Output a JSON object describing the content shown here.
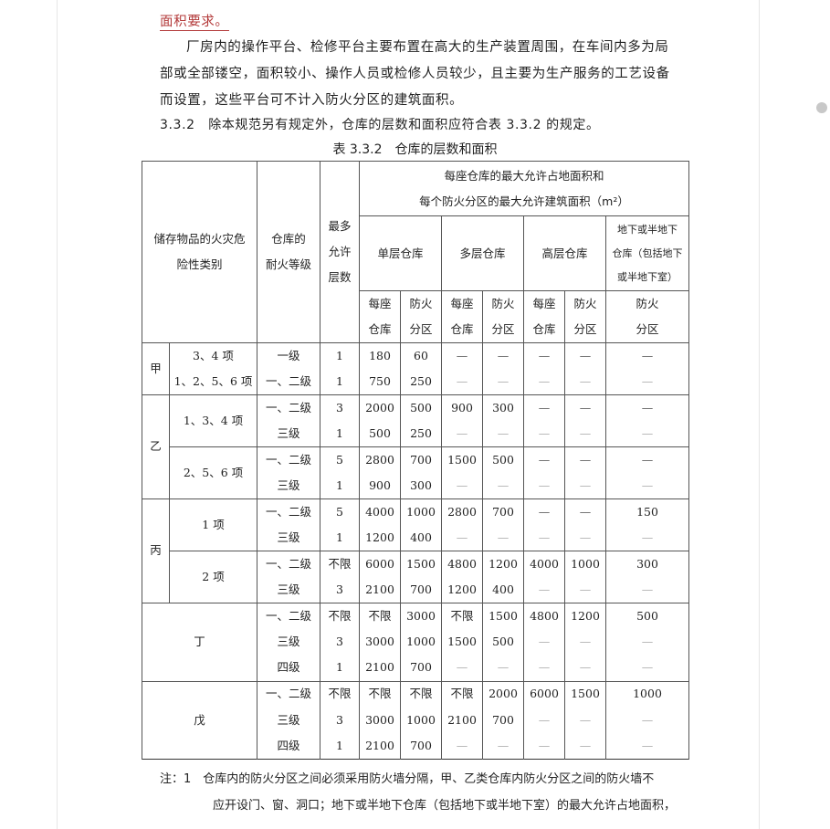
{
  "text": {
    "heading_tail": "面积要求。",
    "para_lines": [
      "厂房内的操作平台、检修平台主要布置在高大的生产装置周围，在车间内多为局",
      "部或全部镂空，面积较小、操作人员或检修人员较少，且主要为生产服务的工艺设备",
      "而设置，这些平台可不计入防火分区的建筑面积。"
    ],
    "clause": "3.3.2　除本规范另有规定外，仓库的层数和面积应符合表 3.3.2 的规定。",
    "table_caption": "表 3.3.2　仓库的层数和面积"
  },
  "table": {
    "header": {
      "col_category": [
        "储存物品的火灾危",
        "险性类别"
      ],
      "col_grade": [
        "仓库的",
        "耐火等级"
      ],
      "col_floors": [
        "最多",
        "允许",
        "层数"
      ],
      "area_group": [
        "每座仓库的最大允许占地面积和",
        "每个防火分区的最大允许建筑面积（m²）"
      ],
      "single": "单层仓库",
      "multi": "多层仓库",
      "high": "高层仓库",
      "underground": [
        "地下或半地下",
        "仓库（包括地下",
        "或半地下室）"
      ],
      "per_building": [
        "每座",
        "仓库"
      ],
      "fire_zone": [
        "防火",
        "分区"
      ]
    },
    "groups": [
      {
        "category": "甲",
        "subs": [
          {
            "item": "3、4 项",
            "rows": [
              [
                "一级",
                "1",
                "180",
                "60",
                "—",
                "—",
                "—",
                "—",
                "—"
              ]
            ]
          },
          {
            "item": "1、2、5、6 项",
            "rows": [
              [
                "一、二级",
                "1",
                "750",
                "250",
                "—",
                "—",
                "—",
                "—",
                "—"
              ]
            ]
          }
        ],
        "inline": true
      },
      {
        "category": "乙",
        "subs": [
          {
            "item": "1、3、4 项",
            "rows": [
              [
                "一、二级",
                "3",
                "2000",
                "500",
                "900",
                "300",
                "—",
                "—",
                "—"
              ],
              [
                "三级",
                "1",
                "500",
                "250",
                "—",
                "—",
                "—",
                "—",
                "—"
              ]
            ]
          },
          {
            "item": "2、5、6 项",
            "rows": [
              [
                "一、二级",
                "5",
                "2800",
                "700",
                "1500",
                "500",
                "—",
                "—",
                "—"
              ],
              [
                "三级",
                "1",
                "900",
                "300",
                "—",
                "—",
                "—",
                "—",
                "—"
              ]
            ]
          }
        ]
      },
      {
        "category": "丙",
        "subs": [
          {
            "item": "1 项",
            "rows": [
              [
                "一、二级",
                "5",
                "4000",
                "1000",
                "2800",
                "700",
                "—",
                "—",
                "150"
              ],
              [
                "三级",
                "1",
                "1200",
                "400",
                "—",
                "—",
                "—",
                "—",
                "—"
              ]
            ]
          },
          {
            "item": "2 项",
            "rows": [
              [
                "一、二级",
                "不限",
                "6000",
                "1500",
                "4800",
                "1200",
                "4000",
                "1000",
                "300"
              ],
              [
                "三级",
                "3",
                "2100",
                "700",
                "1200",
                "400",
                "—",
                "—",
                "—"
              ]
            ]
          }
        ]
      },
      {
        "category": "丁",
        "merged": true,
        "rows": [
          [
            "一、二级",
            "不限",
            "不限",
            "3000",
            "不限",
            "1500",
            "4800",
            "1200",
            "500"
          ],
          [
            "三级",
            "3",
            "3000",
            "1000",
            "1500",
            "500",
            "—",
            "—",
            "—"
          ],
          [
            "四级",
            "1",
            "2100",
            "700",
            "—",
            "—",
            "—",
            "—",
            "—"
          ]
        ]
      },
      {
        "category": "戊",
        "merged": true,
        "rows": [
          [
            "一、二级",
            "不限",
            "不限",
            "不限",
            "不限",
            "2000",
            "6000",
            "1500",
            "1000"
          ],
          [
            "三级",
            "3",
            "3000",
            "1000",
            "2100",
            "700",
            "—",
            "—",
            "—"
          ],
          [
            "四级",
            "1",
            "2100",
            "700",
            "—",
            "—",
            "—",
            "—",
            "—"
          ]
        ]
      }
    ]
  },
  "notes": [
    "注：1　仓库内的防火分区之间必须采用防火墙分隔，甲、乙类仓库内防火分区之间的防火墙不",
    "应开设门、窗、洞口；地下或半地下仓库（包括地下或半地下室）的最大允许占地面积，"
  ]
}
